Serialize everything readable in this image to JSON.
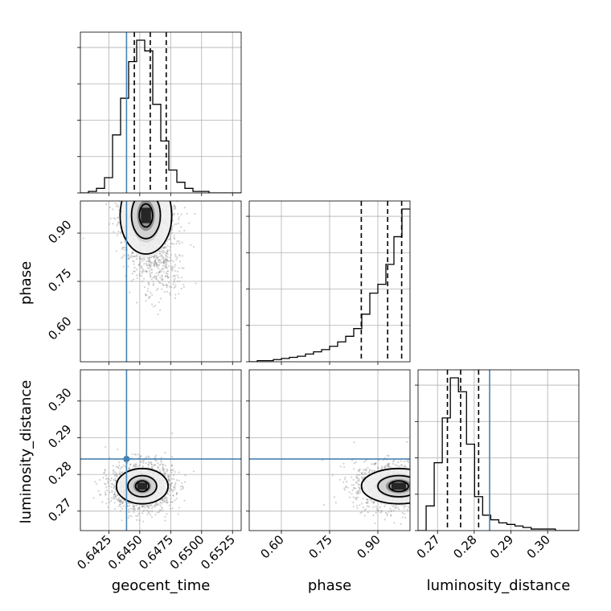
{
  "chart_data": {
    "type": "corner",
    "parameters": [
      "geocent_time",
      "phase",
      "luminosity_distance"
    ],
    "truths": {
      "geocent_time": 0.64393,
      "phase": null,
      "luminosity_distance": 0.2842
    },
    "colors": {
      "truth": "#4682b4",
      "hist": "#000000",
      "scatter": "#7f7f7f",
      "grid": "#b0b0b0"
    },
    "axes": {
      "geocent_time": {
        "range": [
          0.6402,
          0.6532
        ],
        "ticks": [
          0.6425,
          0.645,
          0.6475,
          0.65,
          0.6525
        ],
        "tick_labels": [
          "0.6425",
          "0.6450",
          "0.6475",
          "0.6500",
          "0.6525"
        ]
      },
      "phase": {
        "range": [
          0.5,
          1.0
        ],
        "ticks": [
          0.6,
          0.75,
          0.9
        ],
        "tick_labels": [
          "0.60",
          "0.75",
          "0.90"
        ]
      },
      "luminosity_distance": {
        "range": [
          0.2647,
          0.3085
        ],
        "ticks": [
          0.27,
          0.28,
          0.29,
          0.3
        ],
        "tick_labels": [
          "0.27",
          "0.28",
          "0.29",
          "0.30"
        ]
      }
    },
    "histograms": {
      "geocent_time": {
        "edges_start": 0.6402,
        "bin_width": 0.00065,
        "counts": [
          0,
          1,
          3,
          10,
          38,
          62,
          86,
          100,
          93,
          58,
          34,
          15,
          7,
          3,
          1,
          1,
          0,
          0,
          0,
          0
        ],
        "quantiles": [
          0.64456,
          0.64585,
          0.64714
        ]
      },
      "phase": {
        "edges_start": 0.5,
        "bin_width": 0.025,
        "counts": [
          0,
          1,
          1,
          2,
          3,
          4,
          5,
          7,
          9,
          11,
          14,
          18,
          23,
          30,
          43,
          62,
          70,
          88,
          113,
          138
        ],
        "quantiles": [
          0.8485,
          0.9305,
          0.974
        ]
      },
      "luminosity_distance": {
        "edges_start": 0.2647,
        "bin_width": 0.0022,
        "counts": [
          0,
          16,
          44,
          73,
          99,
          90,
          56,
          22,
          10,
          7,
          5,
          4,
          3,
          2,
          1,
          1,
          1,
          0,
          0,
          0
        ],
        "quantiles": [
          0.2727,
          0.2763,
          0.2812
        ]
      }
    },
    "joint": {
      "geocent_time__phase": {
        "center": [
          0.6455,
          0.955
        ],
        "spread": [
          0.0009,
          0.06
        ],
        "tail": [
          0.0011,
          -0.12
        ]
      },
      "geocent_time__luminosity_distance": {
        "center": [
          0.6452,
          0.2768
        ],
        "spread": [
          0.0009,
          0.0024
        ]
      },
      "phase__luminosity_distance": {
        "center": [
          0.965,
          0.2768
        ],
        "spread": [
          0.05,
          0.0024
        ]
      }
    }
  }
}
